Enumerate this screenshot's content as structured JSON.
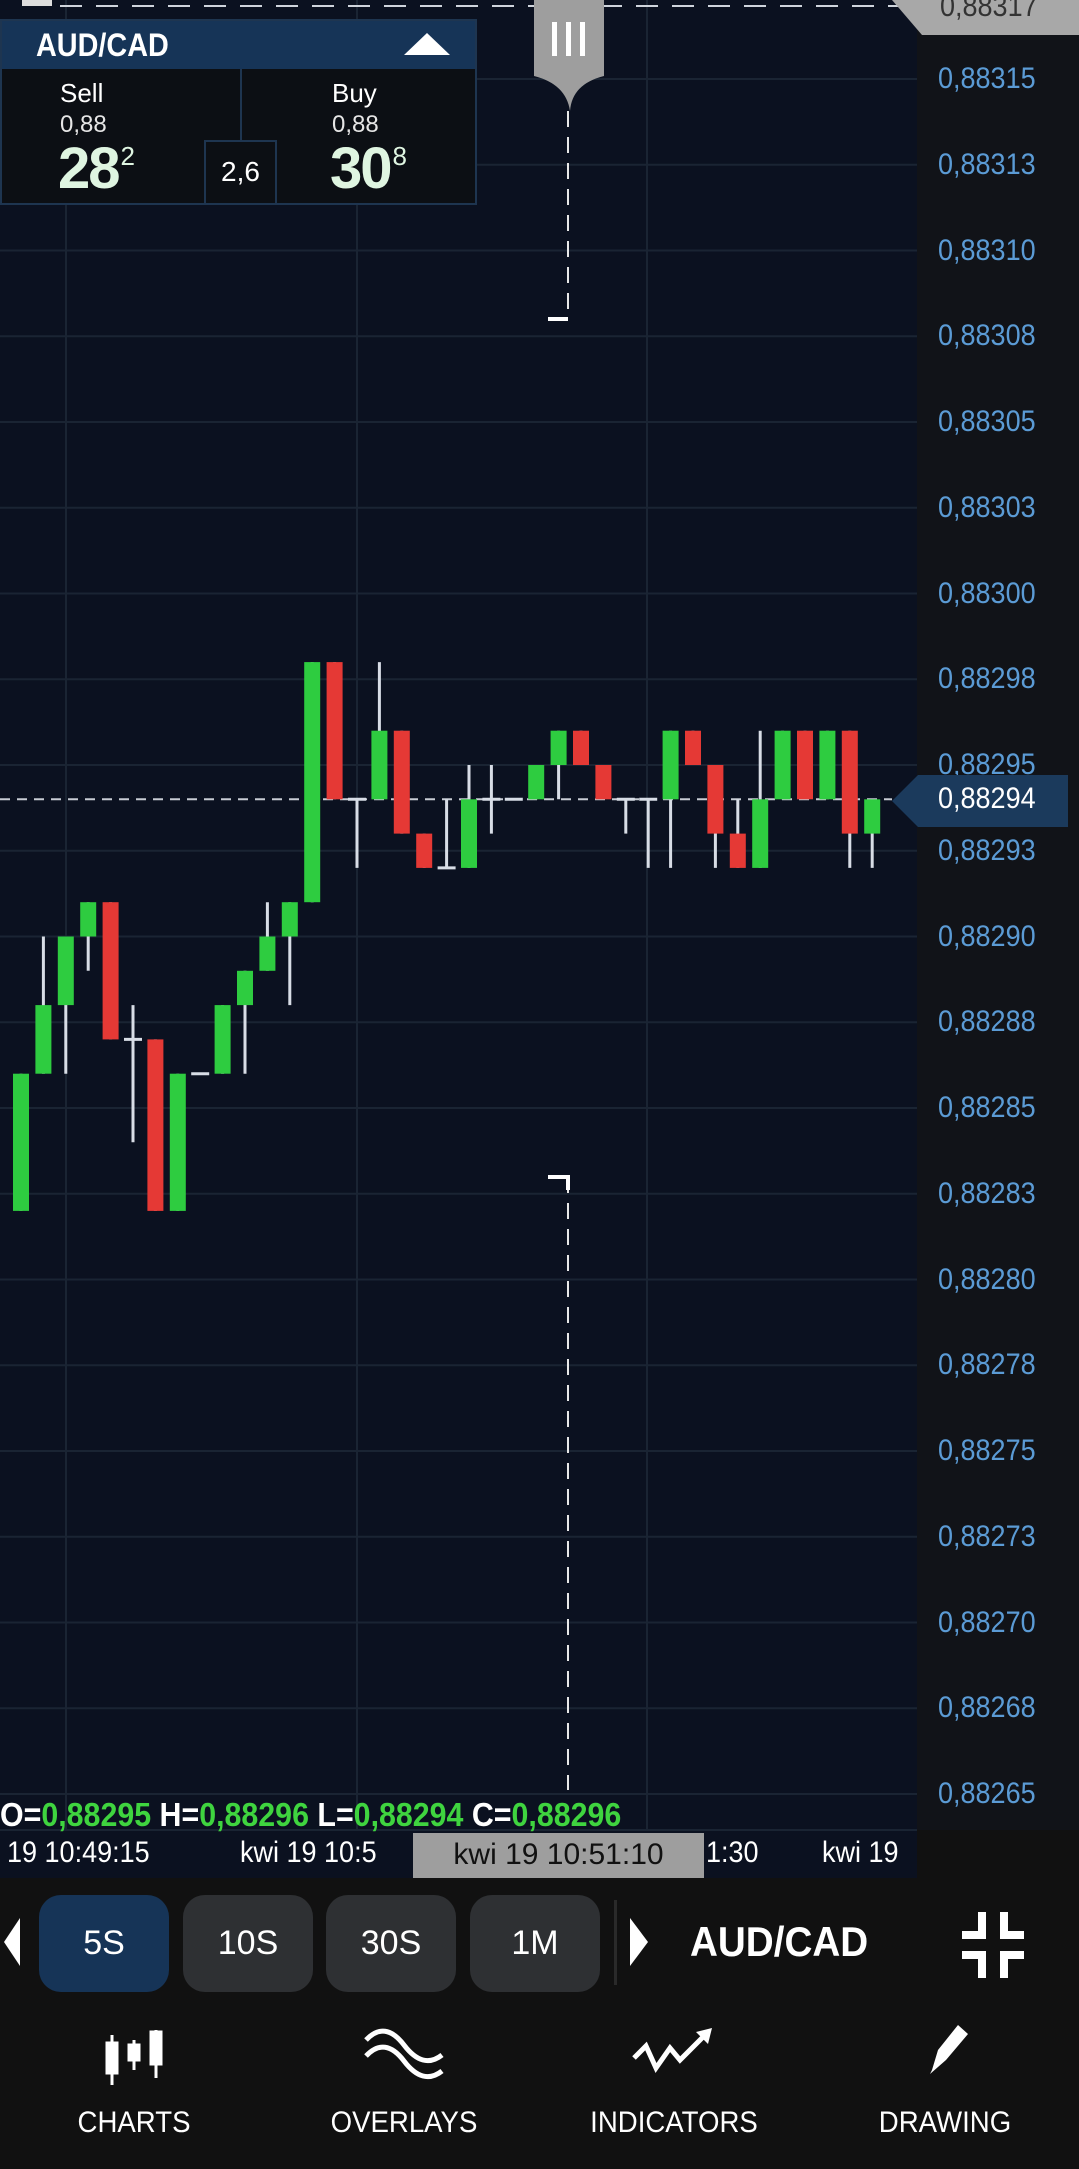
{
  "instrument_panel": {
    "symbol": "AUD/CAD",
    "sell_label": "Sell",
    "sell_prefix": "0,88",
    "sell_big": "28",
    "sell_sup": "2",
    "buy_label": "Buy",
    "buy_prefix": "0,88",
    "buy_big": "30",
    "buy_sup": "8",
    "spread": "2,6"
  },
  "price_axis": {
    "top_tag": "0,88317",
    "labels": [
      "0,88315",
      "0,88313",
      "0,88310",
      "0,88308",
      "0,88305",
      "0,88303",
      "0,88300",
      "0,88298",
      "0,88295",
      "0,88293",
      "0,88290",
      "0,88288",
      "0,88285",
      "0,88283",
      "0,88280",
      "0,88278",
      "0,88275",
      "0,88273",
      "0,88270",
      "0,88268",
      "0,88265"
    ],
    "current_price": "0,88294"
  },
  "ohlc": {
    "o_key": "O=",
    "o": "0,88295",
    "h_key": "H=",
    "h": "0,88296",
    "l_key": "L=",
    "l": "0,88294",
    "c_key": "C=",
    "c": "0,88296"
  },
  "time_axis": {
    "labels": [
      "19 10:49:15",
      "kwi 19 10:5",
      "1:30",
      "kwi 19"
    ],
    "highlight": "kwi 19 10:51:10"
  },
  "timeframes": [
    {
      "label": "5S",
      "active": true
    },
    {
      "label": "10S",
      "active": false
    },
    {
      "label": "30S",
      "active": false
    },
    {
      "label": "1M",
      "active": false
    }
  ],
  "toolbar": {
    "symbol": "AUD/CAD",
    "fullscreen_icon": "exit-fullscreen-icon"
  },
  "bottom_nav": [
    {
      "label": "CHARTS",
      "icon": "candlestick-icon"
    },
    {
      "label": "OVERLAYS",
      "icon": "wave-icon"
    },
    {
      "label": "INDICATORS",
      "icon": "trend-arrow-icon"
    },
    {
      "label": "DRAWING",
      "icon": "pencil-icon"
    }
  ],
  "colors": {
    "up": "#2ecc40",
    "down": "#e53935",
    "accent": "#163457",
    "axis_text": "#5b9bd5",
    "background": "#0b1120"
  },
  "chart_data": {
    "type": "candlestick",
    "symbol": "AUD/CAD",
    "interval": "5S",
    "ylim": [
      0.88265,
      0.88317
    ],
    "grid": true,
    "current_price": 0.88294,
    "candles": [
      {
        "o": 0.88282,
        "h": 0.88286,
        "l": 0.88282,
        "c": 0.88286
      },
      {
        "o": 0.88286,
        "h": 0.8829,
        "l": 0.88286,
        "c": 0.88288
      },
      {
        "o": 0.88288,
        "h": 0.8829,
        "l": 0.88286,
        "c": 0.8829
      },
      {
        "o": 0.8829,
        "h": 0.88291,
        "l": 0.88289,
        "c": 0.88291
      },
      {
        "o": 0.88291,
        "h": 0.88291,
        "l": 0.88287,
        "c": 0.88287
      },
      {
        "o": 0.88287,
        "h": 0.88288,
        "l": 0.88284,
        "c": 0.88287
      },
      {
        "o": 0.88287,
        "h": 0.88287,
        "l": 0.88282,
        "c": 0.88282
      },
      {
        "o": 0.88282,
        "h": 0.88286,
        "l": 0.88282,
        "c": 0.88286
      },
      {
        "o": 0.88286,
        "h": 0.88286,
        "l": 0.88286,
        "c": 0.88286
      },
      {
        "o": 0.88286,
        "h": 0.88288,
        "l": 0.88286,
        "c": 0.88288
      },
      {
        "o": 0.88288,
        "h": 0.88289,
        "l": 0.88286,
        "c": 0.88289
      },
      {
        "o": 0.88289,
        "h": 0.88291,
        "l": 0.88289,
        "c": 0.8829
      },
      {
        "o": 0.8829,
        "h": 0.88291,
        "l": 0.88288,
        "c": 0.88291
      },
      {
        "o": 0.88291,
        "h": 0.88298,
        "l": 0.88291,
        "c": 0.88298
      },
      {
        "o": 0.88298,
        "h": 0.88298,
        "l": 0.88294,
        "c": 0.88294
      },
      {
        "o": 0.88294,
        "h": 0.88294,
        "l": 0.88292,
        "c": 0.88294
      },
      {
        "o": 0.88294,
        "h": 0.88298,
        "l": 0.88294,
        "c": 0.88296
      },
      {
        "o": 0.88296,
        "h": 0.88296,
        "l": 0.88293,
        "c": 0.88293
      },
      {
        "o": 0.88293,
        "h": 0.88293,
        "l": 0.88292,
        "c": 0.88292
      },
      {
        "o": 0.88292,
        "h": 0.88294,
        "l": 0.88292,
        "c": 0.88292
      },
      {
        "o": 0.88292,
        "h": 0.88295,
        "l": 0.88292,
        "c": 0.88294
      },
      {
        "o": 0.88294,
        "h": 0.88295,
        "l": 0.88293,
        "c": 0.88294
      },
      {
        "o": 0.88294,
        "h": 0.88294,
        "l": 0.88294,
        "c": 0.88294
      },
      {
        "o": 0.88294,
        "h": 0.88295,
        "l": 0.88294,
        "c": 0.88295
      },
      {
        "o": 0.88295,
        "h": 0.88296,
        "l": 0.88294,
        "c": 0.88296
      },
      {
        "o": 0.88296,
        "h": 0.88296,
        "l": 0.88295,
        "c": 0.88295
      },
      {
        "o": 0.88295,
        "h": 0.88295,
        "l": 0.88294,
        "c": 0.88294
      },
      {
        "o": 0.88294,
        "h": 0.88294,
        "l": 0.88293,
        "c": 0.88294
      },
      {
        "o": 0.88294,
        "h": 0.88294,
        "l": 0.88292,
        "c": 0.88294
      },
      {
        "o": 0.88294,
        "h": 0.88296,
        "l": 0.88292,
        "c": 0.88296
      },
      {
        "o": 0.88296,
        "h": 0.88296,
        "l": 0.88295,
        "c": 0.88295
      },
      {
        "o": 0.88295,
        "h": 0.88295,
        "l": 0.88292,
        "c": 0.88293
      },
      {
        "o": 0.88293,
        "h": 0.88294,
        "l": 0.88292,
        "c": 0.88292
      },
      {
        "o": 0.88292,
        "h": 0.88296,
        "l": 0.88292,
        "c": 0.88294
      },
      {
        "o": 0.88294,
        "h": 0.88296,
        "l": 0.88294,
        "c": 0.88296
      },
      {
        "o": 0.88296,
        "h": 0.88296,
        "l": 0.88294,
        "c": 0.88294
      },
      {
        "o": 0.88294,
        "h": 0.88296,
        "l": 0.88294,
        "c": 0.88296
      },
      {
        "o": 0.88296,
        "h": 0.88296,
        "l": 0.88292,
        "c": 0.88293
      },
      {
        "o": 0.88293,
        "h": 0.88294,
        "l": 0.88292,
        "c": 0.88294
      }
    ]
  }
}
